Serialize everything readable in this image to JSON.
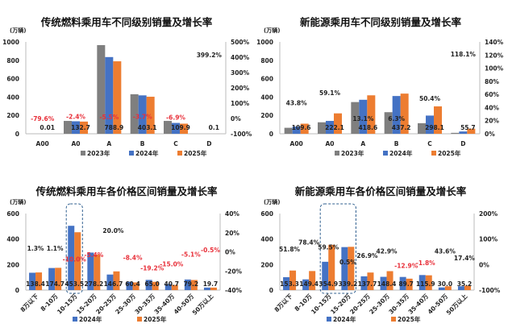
{
  "colors": {
    "2023": "#7f7f7f",
    "2024": "#4472c4",
    "2025": "#ed7d31",
    "negative": "#e8303a",
    "positive": "#222222",
    "highlight": "#2f5f8f"
  },
  "chart_data": [
    {
      "type": "bar",
      "title": "传统燃料乘用车不同级别销量及增长率",
      "ylabel": "(万辆)",
      "ylim": [
        0,
        1000
      ],
      "yticks": [
        0,
        200,
        400,
        600,
        800,
        1000
      ],
      "y2lim": [
        -100,
        500
      ],
      "y2ticks": [
        "-100%",
        "0%",
        "100%",
        "200%",
        "300%",
        "400%",
        "500%"
      ],
      "rotate_labels": false,
      "categories": [
        "A00",
        "A0",
        "A",
        "B",
        "C",
        "D"
      ],
      "series": [
        {
          "name": "2023年",
          "color_key": "2023",
          "values": [
            0.05,
            140,
            965,
            430,
            140,
            0.02
          ]
        },
        {
          "name": "2024年",
          "color_key": "2024",
          "values": [
            0.05,
            136,
            835,
            418,
            118,
            0.02
          ]
        },
        {
          "name": "2025年",
          "color_key": "2025",
          "values": [
            0.01,
            132.7,
            788.9,
            403.1,
            109.9,
            0.1
          ]
        }
      ],
      "value_labels": [
        "0.01",
        "132.7",
        "788.9",
        "403.1",
        "109.9",
        "0.1"
      ],
      "growth_rates": [
        -79.6,
        -2.4,
        -5.5,
        -3.7,
        -6.9,
        399.2
      ],
      "growth_labels": [
        "-79.6%",
        "-2.4%",
        "-5.5%",
        "-3.7%",
        "-6.9%",
        "399.2%"
      ],
      "highlight": [],
      "legend": "bottom"
    },
    {
      "type": "bar",
      "title": "新能源乘用车不同级别销量及增长率",
      "ylabel": "(万辆)",
      "ylim": [
        0,
        1000
      ],
      "yticks": [
        0,
        200,
        400,
        600,
        800,
        1000
      ],
      "y2lim": [
        0,
        140
      ],
      "y2ticks": [
        "0%",
        "20%",
        "40%",
        "60%",
        "80%",
        "100%",
        "120%",
        "140%"
      ],
      "rotate_labels": false,
      "categories": [
        "A00",
        "A0",
        "A",
        "B",
        "C",
        "D"
      ],
      "series": [
        {
          "name": "2023年",
          "color_key": "2023",
          "values": [
            65,
            125,
            345,
            235,
            115,
            10
          ]
        },
        {
          "name": "2024年",
          "color_key": "2024",
          "values": [
            78,
            140,
            370,
            411,
            198,
            25
          ]
        },
        {
          "name": "2025年",
          "color_key": "2025",
          "values": [
            109.6,
            222.1,
            418.6,
            437.2,
            298.1,
            55.7
          ]
        }
      ],
      "value_labels": [
        "109.6",
        "222.1",
        "418.6",
        "437.2",
        "298.1",
        "55.7"
      ],
      "growth_rates": [
        43.8,
        59.1,
        13.1,
        6.3,
        50.4,
        118.1
      ],
      "growth_labels": [
        "43.8%",
        "59.1%",
        "13.1%",
        "6.3%",
        "50.4%",
        "118.1%"
      ],
      "highlight": [],
      "legend": "bottom"
    },
    {
      "type": "bar",
      "title": "传统燃料乘用车各价格区间销量及增长率",
      "ylabel": "(万辆)",
      "ylim": [
        0,
        600
      ],
      "yticks": [
        0,
        200,
        400,
        600
      ],
      "y2lim": [
        -40,
        40
      ],
      "y2ticks": [
        "-40%",
        "-20%",
        "0%",
        "20%",
        "40%"
      ],
      "rotate_labels": true,
      "categories": [
        "8万以下",
        "8-10万",
        "10-15万",
        "15-20万",
        "20-25万",
        "25-30万",
        "30-35万",
        "35-40万",
        "40-50万",
        "50万以上"
      ],
      "series": [
        {
          "name": "2024年",
          "color_key": "2024",
          "values": [
            136,
            173,
            504,
            294,
            122,
            66,
            80,
            48,
            83,
            20
          ]
        },
        {
          "name": "2025年",
          "color_key": "2025",
          "values": [
            138.4,
            174.7,
            453.5,
            278.2,
            146.7,
            60.4,
            65.0,
            40.7,
            79.2,
            19.7
          ]
        }
      ],
      "value_labels": [
        "138.4",
        "174.7",
        "453.5",
        "278.2",
        "146.7",
        "60.4",
        "65.0",
        "40.7",
        "79.2",
        "19.7"
      ],
      "growth_rates": [
        1.3,
        1.1,
        -10.0,
        -5.4,
        20.0,
        -8.4,
        -19.2,
        -15.0,
        -5.1,
        -0.5
      ],
      "growth_labels": [
        "1.3%",
        "1.1%",
        "-10.0%",
        "-5.4%",
        "20.0%",
        "-8.4%",
        "-19.2%",
        "-15.0%",
        "-5.1%",
        "-0.5%"
      ],
      "highlight": [
        2
      ],
      "legend": "bottom"
    },
    {
      "type": "bar",
      "title": "新能源乘用车各价格区间销量及增长率",
      "ylabel": "(万辆)",
      "ylim": [
        0,
        600
      ],
      "yticks": [
        0,
        200,
        400,
        600
      ],
      "y2lim": [
        -100,
        200
      ],
      "y2ticks": [
        "-100%",
        "0%",
        "100%",
        "200%"
      ],
      "rotate_labels": true,
      "categories": [
        "8万以下",
        "8-10万",
        "10-15万",
        "15-20万",
        "20-25万",
        "25-30万",
        "30-35万",
        "35-40万",
        "40-50万",
        "50万以上"
      ],
      "series": [
        {
          "name": "2024年",
          "color_key": "2024",
          "values": [
            101,
            84,
            222,
            337,
            108,
            104,
            103,
            118,
            21,
            30
          ]
        },
        {
          "name": "2025年",
          "color_key": "2025",
          "values": [
            153.3,
            149.4,
            354.9,
            339.2,
            137.7,
            148.4,
            89.7,
            115.9,
            30.0,
            35.2
          ]
        }
      ],
      "value_labels": [
        "153.3",
        "149.4",
        "354.9",
        "339.2",
        "137.7",
        "148.4",
        "89.7",
        "115.9",
        "30.0",
        "35.2"
      ],
      "growth_rates": [
        51.8,
        78.4,
        59.5,
        0.5,
        26.9,
        42.9,
        -12.9,
        -1.8,
        43.6,
        17.4
      ],
      "growth_labels": [
        "51.8%",
        "78.4%",
        "59.5%",
        "0.5%",
        "26.9%",
        "42.9%",
        "-12.9%",
        "-1.8%",
        "43.6%",
        "17.4%"
      ],
      "highlight": [
        2,
        3
      ],
      "legend": "bottom"
    }
  ]
}
